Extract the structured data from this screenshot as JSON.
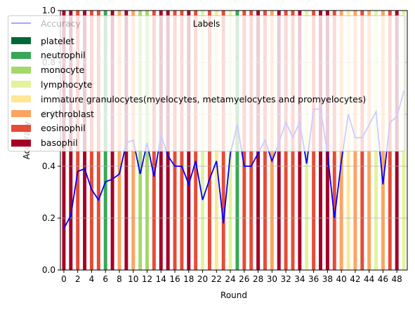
{
  "chart_data": {
    "type": "bar",
    "xlabel": "Round",
    "ylabel": "Accuracy",
    "ylim": [
      0,
      1.0
    ],
    "xlim": [
      -0.5,
      49.5
    ],
    "y_ticks": [
      "0.0",
      "0.2",
      "0.4",
      "0.6",
      "0.8",
      "1.0"
    ],
    "x_ticks": [
      "0",
      "2",
      "4",
      "6",
      "8",
      "10",
      "12",
      "14",
      "16",
      "18",
      "20",
      "22",
      "24",
      "26",
      "28",
      "30",
      "32",
      "34",
      "36",
      "38",
      "40",
      "42",
      "44",
      "46",
      "48"
    ],
    "grid": "horizontal",
    "legend_title": "Labels",
    "legend_placement": "top",
    "line_series": {
      "name": "Accuracy",
      "color": "#0000ff",
      "x": [
        0,
        1,
        2,
        3,
        4,
        5,
        6,
        7,
        8,
        9,
        10,
        11,
        12,
        13,
        14,
        15,
        16,
        17,
        18,
        19,
        20,
        21,
        22,
        23,
        24,
        25,
        26,
        27,
        28,
        29,
        30,
        31,
        32,
        33,
        34,
        35,
        36,
        37,
        38,
        39,
        40,
        41,
        42,
        43,
        44,
        45,
        46,
        47,
        48,
        49
      ],
      "y": [
        0.16,
        0.21,
        0.38,
        0.39,
        0.31,
        0.27,
        0.34,
        0.35,
        0.37,
        0.49,
        0.5,
        0.37,
        0.49,
        0.36,
        0.52,
        0.44,
        0.4,
        0.4,
        0.33,
        0.42,
        0.27,
        0.35,
        0.42,
        0.18,
        0.45,
        0.56,
        0.4,
        0.4,
        0.45,
        0.5,
        0.42,
        0.49,
        0.57,
        0.51,
        0.57,
        0.41,
        0.62,
        0.62,
        0.45,
        0.2,
        0.42,
        0.6,
        0.51,
        0.51,
        0.56,
        0.61,
        0.33,
        0.57,
        0.59,
        0.69
      ]
    },
    "series": [
      {
        "name": "platelet",
        "color": "#006837"
      },
      {
        "name": "neutrophil",
        "color": "#3aa757"
      },
      {
        "name": "monocyte",
        "color": "#a5d86a"
      },
      {
        "name": "lymphocyte",
        "color": "#e3f39d"
      },
      {
        "name": "immature granulocytes(myelocytes, metamyelocytes and promyelocytes)",
        "color": "#fee695"
      },
      {
        "name": "erythroblast",
        "color": "#fca45f"
      },
      {
        "name": "eosinophil",
        "color": "#e54c36"
      },
      {
        "name": "basophil",
        "color": "#a50026"
      }
    ],
    "bar_labels_by_round": [
      "basophil",
      "basophil",
      "eosinophil",
      "basophil",
      "eosinophil",
      "eosinophil",
      "neutrophil",
      "basophil",
      "erythroblast",
      "basophil",
      "erythroblast",
      "monocyte",
      "monocyte",
      "eosinophil",
      "basophil",
      "basophil",
      "eosinophil",
      "eosinophil",
      "basophil",
      "eosinophil",
      "lymphocyte",
      "eosinophil",
      "immature granulocytes(myelocytes, metamyelocytes and promyelocytes)",
      "eosinophil",
      "lymphocyte",
      "neutrophil",
      "eosinophil",
      "eosinophil",
      "basophil",
      "eosinophil",
      "erythroblast",
      "basophil",
      "eosinophil",
      "eosinophil",
      "basophil",
      "lymphocyte",
      "eosinophil",
      "basophil",
      "basophil",
      "eosinophil",
      "erythroblast",
      "immature granulocytes(myelocytes, metamyelocytes and promyelocytes)",
      "erythroblast",
      "eosinophil",
      "erythroblast",
      "lymphocyte",
      "erythroblast",
      "eosinophil",
      "basophil",
      "lymphocyte"
    ],
    "bar_value": 1.0
  }
}
